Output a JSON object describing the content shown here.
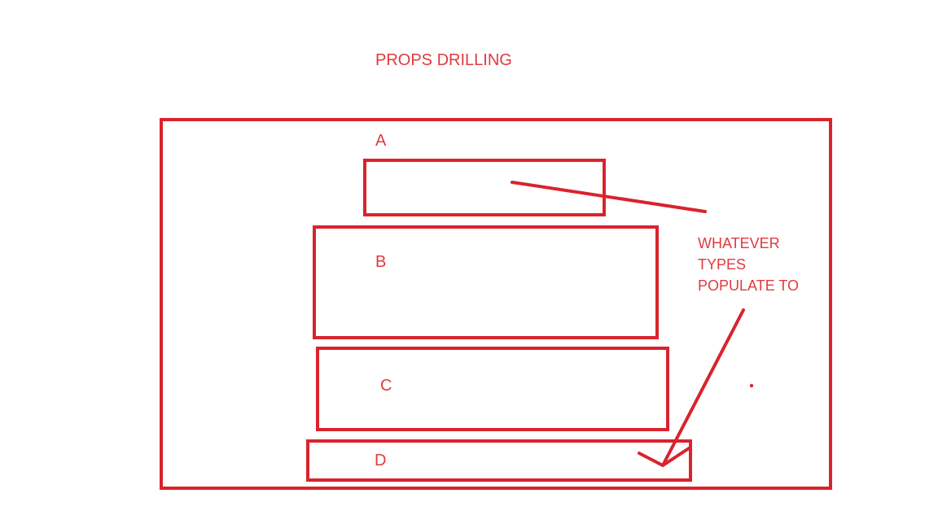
{
  "colors": {
    "stroke": "#d9232d",
    "text": "#e03a3e",
    "background": "#ffffff"
  },
  "title": "PROPS DRILLING",
  "components": [
    {
      "id": "a",
      "label": "A"
    },
    {
      "id": "b",
      "label": "B"
    },
    {
      "id": "c",
      "label": "C"
    },
    {
      "id": "d",
      "label": "D"
    }
  ],
  "annotation": {
    "lines": [
      "WHATEVER",
      "TYPES",
      "POPULATE TO"
    ]
  }
}
